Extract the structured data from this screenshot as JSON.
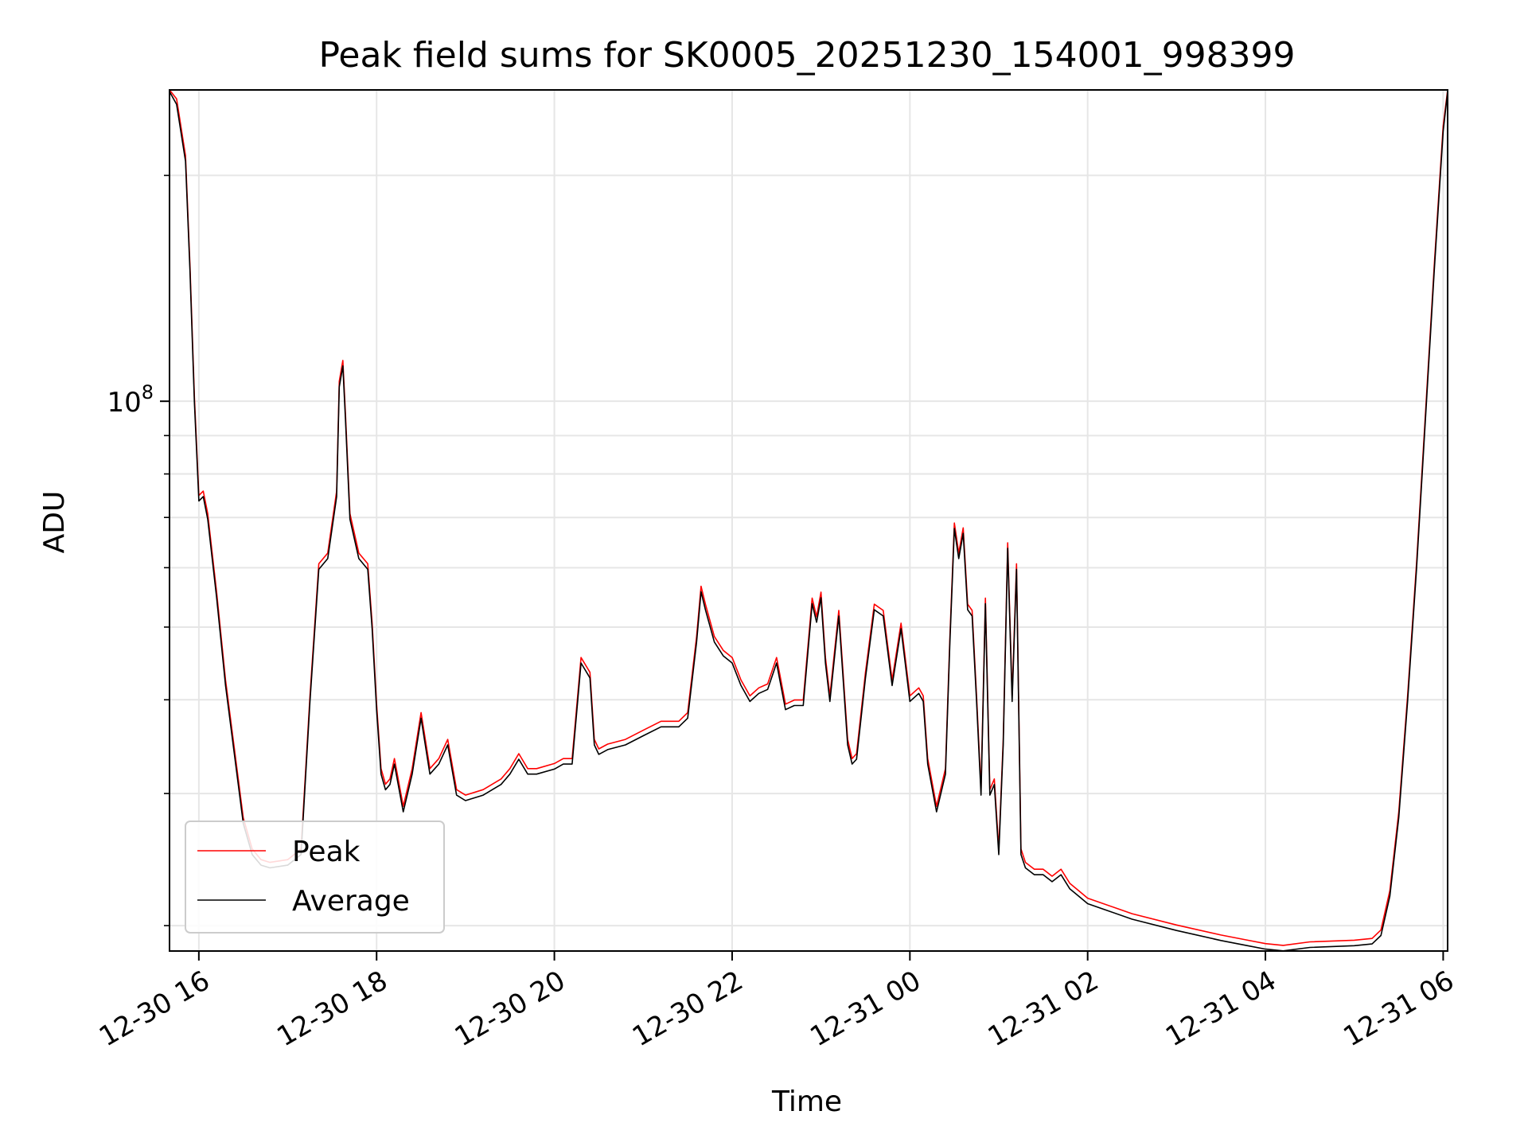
{
  "chart_data": {
    "type": "line",
    "title": "Peak field sums for SK0005_20251230_154001_998399",
    "xlabel": "Time",
    "ylabel": "ADU",
    "yscale": "log",
    "ylim": [
      18500000.0,
      260000000.0
    ],
    "y_major_tick": {
      "value": 100000000.0,
      "label": "10",
      "exp": "8"
    },
    "y_minor_ticks": [
      20000000.0,
      30000000.0,
      40000000.0,
      50000000.0,
      60000000.0,
      70000000.0,
      80000000.0,
      90000000.0,
      200000000.0
    ],
    "x_units": "hours since 12-30 00:00",
    "xlim": [
      15.67,
      30.05
    ],
    "x_ticks": [
      {
        "value": 16,
        "label": "12-30 16"
      },
      {
        "value": 18,
        "label": "12-30 18"
      },
      {
        "value": 20,
        "label": "12-30 20"
      },
      {
        "value": 22,
        "label": "12-30 22"
      },
      {
        "value": 24,
        "label": "12-31 00"
      },
      {
        "value": 26,
        "label": "12-31 02"
      },
      {
        "value": 28,
        "label": "12-31 04"
      },
      {
        "value": 30,
        "label": "12-31 06"
      }
    ],
    "grid": true,
    "legend_position": "lower-left",
    "series": [
      {
        "name": "Peak",
        "color": "#ff0000"
      },
      {
        "name": "Average",
        "color": "#000000"
      }
    ],
    "x": [
      15.67,
      15.75,
      15.85,
      15.9,
      15.95,
      16.0,
      16.05,
      16.1,
      16.2,
      16.3,
      16.5,
      16.6,
      16.7,
      16.8,
      17.0,
      17.15,
      17.25,
      17.35,
      17.45,
      17.55,
      17.58,
      17.62,
      17.65,
      17.7,
      17.8,
      17.9,
      17.95,
      18.0,
      18.05,
      18.1,
      18.15,
      18.2,
      18.3,
      18.4,
      18.5,
      18.6,
      18.7,
      18.8,
      18.9,
      19.0,
      19.2,
      19.4,
      19.5,
      19.6,
      19.7,
      19.8,
      20.0,
      20.1,
      20.2,
      20.3,
      20.4,
      20.45,
      20.5,
      20.6,
      20.8,
      21.0,
      21.2,
      21.4,
      21.5,
      21.6,
      21.65,
      21.7,
      21.8,
      21.9,
      22.0,
      22.1,
      22.2,
      22.3,
      22.4,
      22.5,
      22.6,
      22.7,
      22.8,
      22.9,
      22.95,
      23.0,
      23.05,
      23.1,
      23.2,
      23.3,
      23.35,
      23.4,
      23.5,
      23.6,
      23.7,
      23.8,
      23.9,
      24.0,
      24.1,
      24.15,
      24.2,
      24.3,
      24.4,
      24.45,
      24.5,
      24.55,
      24.6,
      24.65,
      24.7,
      24.75,
      24.8,
      24.85,
      24.9,
      24.95,
      25.0,
      25.05,
      25.1,
      25.15,
      25.2,
      25.25,
      25.3,
      25.4,
      25.5,
      25.6,
      25.7,
      25.8,
      25.9,
      26.0,
      26.5,
      27.0,
      27.5,
      27.8,
      28.0,
      28.2,
      28.5,
      29.0,
      29.2,
      29.3,
      29.4,
      29.5,
      29.6,
      29.7,
      29.8,
      29.9,
      30.0,
      30.05
    ],
    "values": [
      260000000.0,
      250000000.0,
      210000000.0,
      150000000.0,
      100000000.0,
      74000000.0,
      75000000.0,
      70000000.0,
      55000000.0,
      42000000.0,
      27500000.0,
      25000000.0,
      24200000.0,
      24000000.0,
      24200000.0,
      25000000.0,
      40000000.0,
      60000000.0,
      62000000.0,
      75000000.0,
      105000000.0,
      112000000.0,
      95000000.0,
      70000000.0,
      62000000.0,
      60000000.0,
      50000000.0,
      39000000.0,
      32000000.0,
      30500000.0,
      31000000.0,
      33000000.0,
      28500000.0,
      32000000.0,
      38000000.0,
      32000000.0,
      33000000.0,
      35000000.0,
      30000000.0,
      29500000.0,
      30000000.0,
      31000000.0,
      32000000.0,
      33500000.0,
      32000000.0,
      32000000.0,
      32500000.0,
      33000000.0,
      33000000.0,
      45000000.0,
      43000000.0,
      35000000.0,
      34000000.0,
      34500000.0,
      35000000.0,
      36000000.0,
      37000000.0,
      37000000.0,
      38000000.0,
      48000000.0,
      56000000.0,
      53000000.0,
      48000000.0,
      46000000.0,
      45000000.0,
      42000000.0,
      40000000.0,
      41000000.0,
      41500000.0,
      45000000.0,
      39000000.0,
      39500000.0,
      39500000.0,
      54000000.0,
      51000000.0,
      55000000.0,
      45000000.0,
      40000000.0,
      52000000.0,
      35000000.0,
      33000000.0,
      33500000.0,
      43000000.0,
      53000000.0,
      52000000.0,
      42000000.0,
      50000000.0,
      40000000.0,
      41000000.0,
      40000000.0,
      33000000.0,
      28500000.0,
      32000000.0,
      48000000.0,
      68000000.0,
      62000000.0,
      67000000.0,
      53000000.0,
      52000000.0,
      40000000.0,
      30000000.0,
      54000000.0,
      30000000.0,
      31000000.0,
      25000000.0,
      35000000.0,
      64000000.0,
      40000000.0,
      60000000.0,
      25000000.0,
      24000000.0,
      23500000.0,
      23500000.0,
      23000000.0,
      23500000.0,
      22500000.0,
      22000000.0,
      21500000.0,
      20500000.0,
      19800000.0,
      19200000.0,
      18900000.0,
      18700000.0,
      18600000.0,
      18800000.0,
      18900000.0,
      19000000.0,
      19500000.0,
      22000000.0,
      28000000.0,
      40000000.0,
      60000000.0,
      95000000.0,
      150000000.0,
      230000000.0,
      260000000.0
    ]
  }
}
